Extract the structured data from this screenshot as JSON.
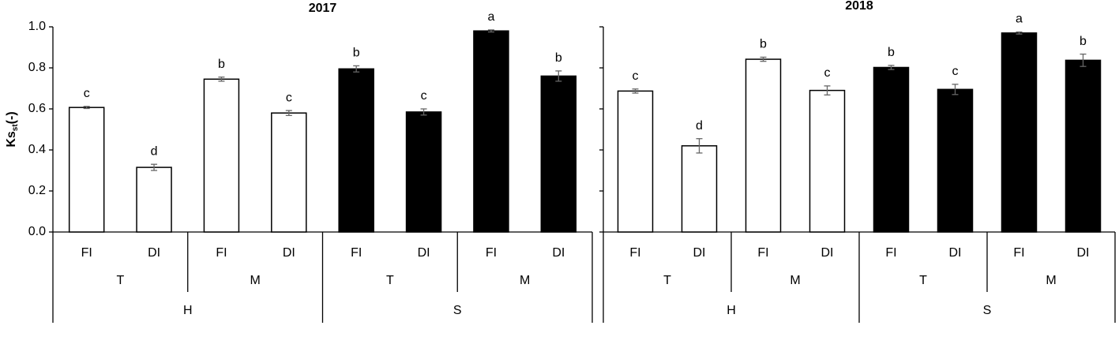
{
  "chart_data": [
    {
      "type": "bar",
      "title": "2017",
      "y_label": [
        "Ks",
        "st",
        "(-)"
      ],
      "categories": [
        "FI",
        "DI",
        "FI",
        "DI",
        "FI",
        "DI",
        "FI",
        "DI"
      ],
      "groups": [
        "T",
        "M",
        "T",
        "M"
      ],
      "supergroups": [
        "H",
        "S"
      ],
      "values": [
        0.607,
        0.315,
        0.745,
        0.58,
        0.795,
        0.585,
        0.98,
        0.76
      ],
      "errors": [
        0.005,
        0.015,
        0.01,
        0.012,
        0.015,
        0.015,
        0.005,
        0.025
      ],
      "letters": [
        "c",
        "d",
        "b",
        "c",
        "b",
        "c",
        "a",
        "b"
      ],
      "colors": [
        "#ffffff",
        "#ffffff",
        "#ffffff",
        "#ffffff",
        "#000000",
        "#000000",
        "#000000",
        "#000000"
      ],
      "ylim": [
        0,
        1
      ],
      "yticks": [
        {
          "value": 0,
          "label": "0.0"
        },
        {
          "value": 0.2,
          "label": "0.2"
        },
        {
          "value": 0.4,
          "label": "0.4"
        },
        {
          "value": 0.6,
          "label": "0.6"
        },
        {
          "value": 0.8,
          "label": "0.8"
        },
        {
          "value": 1,
          "label": "1.0"
        }
      ],
      "ytick_labels": true
    },
    {
      "type": "bar",
      "title": "2018",
      "categories": [
        "FI",
        "DI",
        "FI",
        "DI",
        "FI",
        "DI",
        "FI",
        "DI"
      ],
      "groups": [
        "T",
        "M",
        "T",
        "M"
      ],
      "supergroups": [
        "H",
        "S"
      ],
      "values": [
        0.687,
        0.42,
        0.842,
        0.69,
        0.802,
        0.695,
        0.97,
        0.837
      ],
      "errors": [
        0.01,
        0.035,
        0.01,
        0.022,
        0.01,
        0.025,
        0.005,
        0.03
      ],
      "letters": [
        "c",
        "d",
        "b",
        "c",
        "b",
        "c",
        "a",
        "b"
      ],
      "colors": [
        "#ffffff",
        "#ffffff",
        "#ffffff",
        "#ffffff",
        "#000000",
        "#000000",
        "#000000",
        "#000000"
      ],
      "ylim": [
        0,
        1
      ],
      "yticks": [
        0,
        0.2,
        0.4,
        0.6,
        0.8,
        1
      ],
      "ytick_labels": false
    }
  ]
}
